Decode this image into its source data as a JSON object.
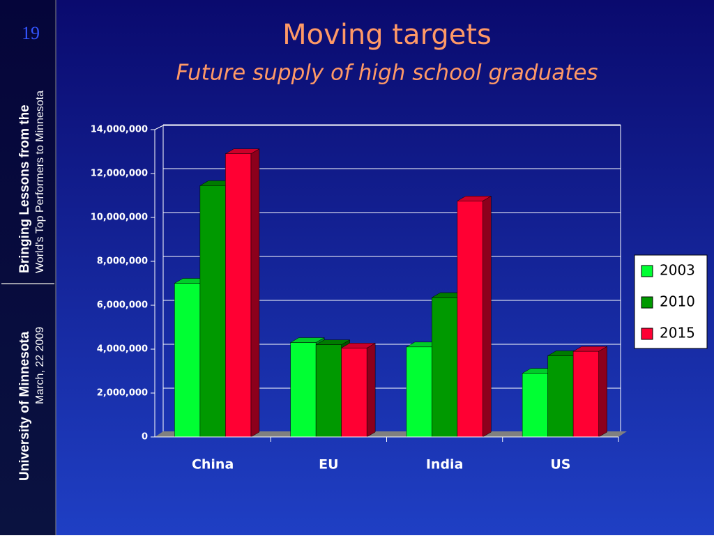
{
  "slide": {
    "number": "19",
    "sidebar_line1": "Bringing Lessons from the",
    "sidebar_line2": "World's Top Performers to Minnesota",
    "sidebar_line3": "University of Minnesota",
    "sidebar_line4": "March, 22 2009"
  },
  "chart_data": {
    "type": "bar3d",
    "title": "Moving targets",
    "subtitle": "Future supply of high school graduates",
    "categories": [
      "China",
      "EU",
      "India",
      "US"
    ],
    "series": [
      {
        "name": "2003",
        "color": "#00ff33",
        "values": [
          7000000,
          4300000,
          4100000,
          2900000
        ]
      },
      {
        "name": "2010",
        "color": "#009900",
        "values": [
          11450000,
          4200000,
          6350000,
          3700000
        ]
      },
      {
        "name": "2015",
        "color": "#ff0033",
        "values": [
          12900000,
          4050000,
          10750000,
          3900000
        ]
      }
    ],
    "ylim": [
      0,
      14000000
    ],
    "yticks": [
      0,
      {
        "value": 2000000,
        "label": "2,000,000"
      },
      {
        "value": 4000000,
        "label": "4,000,000"
      },
      {
        "value": 6000000,
        "label": "6,000,000"
      },
      {
        "value": 8000000,
        "label": "8,000,000"
      },
      {
        "value": 10000000,
        "label": "10,000,000"
      },
      {
        "value": 12000000,
        "label": "12,000,000"
      },
      {
        "value": 14000000,
        "label": "14,000,000"
      }
    ],
    "grid": true,
    "legend": "right"
  }
}
